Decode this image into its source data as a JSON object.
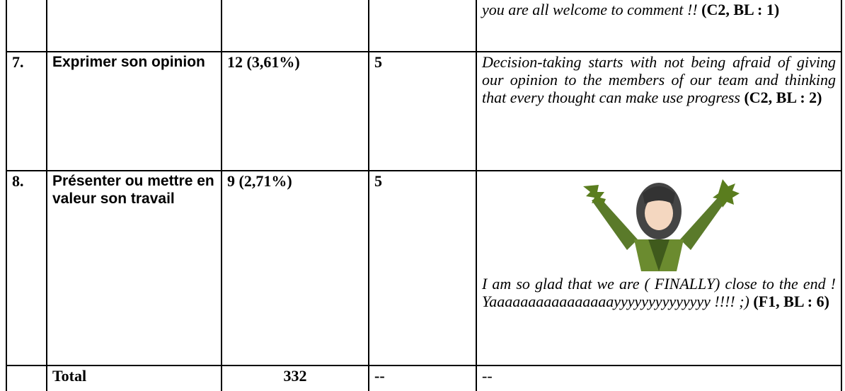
{
  "table": {
    "rows": [
      {
        "comment": {
          "text": "you are all welcome to comment !!",
          "source": "(C2, BL : 1)"
        }
      },
      {
        "num": "7.",
        "label": "Exprimer son opinion",
        "count": "12 (3,61%)",
        "score": 5,
        "comment": {
          "text": "Decision-taking starts with not being afraid of giving our opinion to the members of our team and thinking that every thought can make use progress",
          "source": "(C2, BL : 2)"
        }
      },
      {
        "num": "8.",
        "label": "Présenter ou mettre en valeur son travail",
        "count": "9 (2,71%)",
        "score": 5,
        "comment": {
          "text": "I am so glad that we are ( FINALLY) close to the end ! Yaaaaaaaaaaaaaaaayyyyyyyyyyyyyy !!!! ;)",
          "source": "(F1, BL : 6)"
        }
      }
    ],
    "total": {
      "label": "Total",
      "count": 332,
      "score": "--",
      "comment": "--"
    }
  }
}
